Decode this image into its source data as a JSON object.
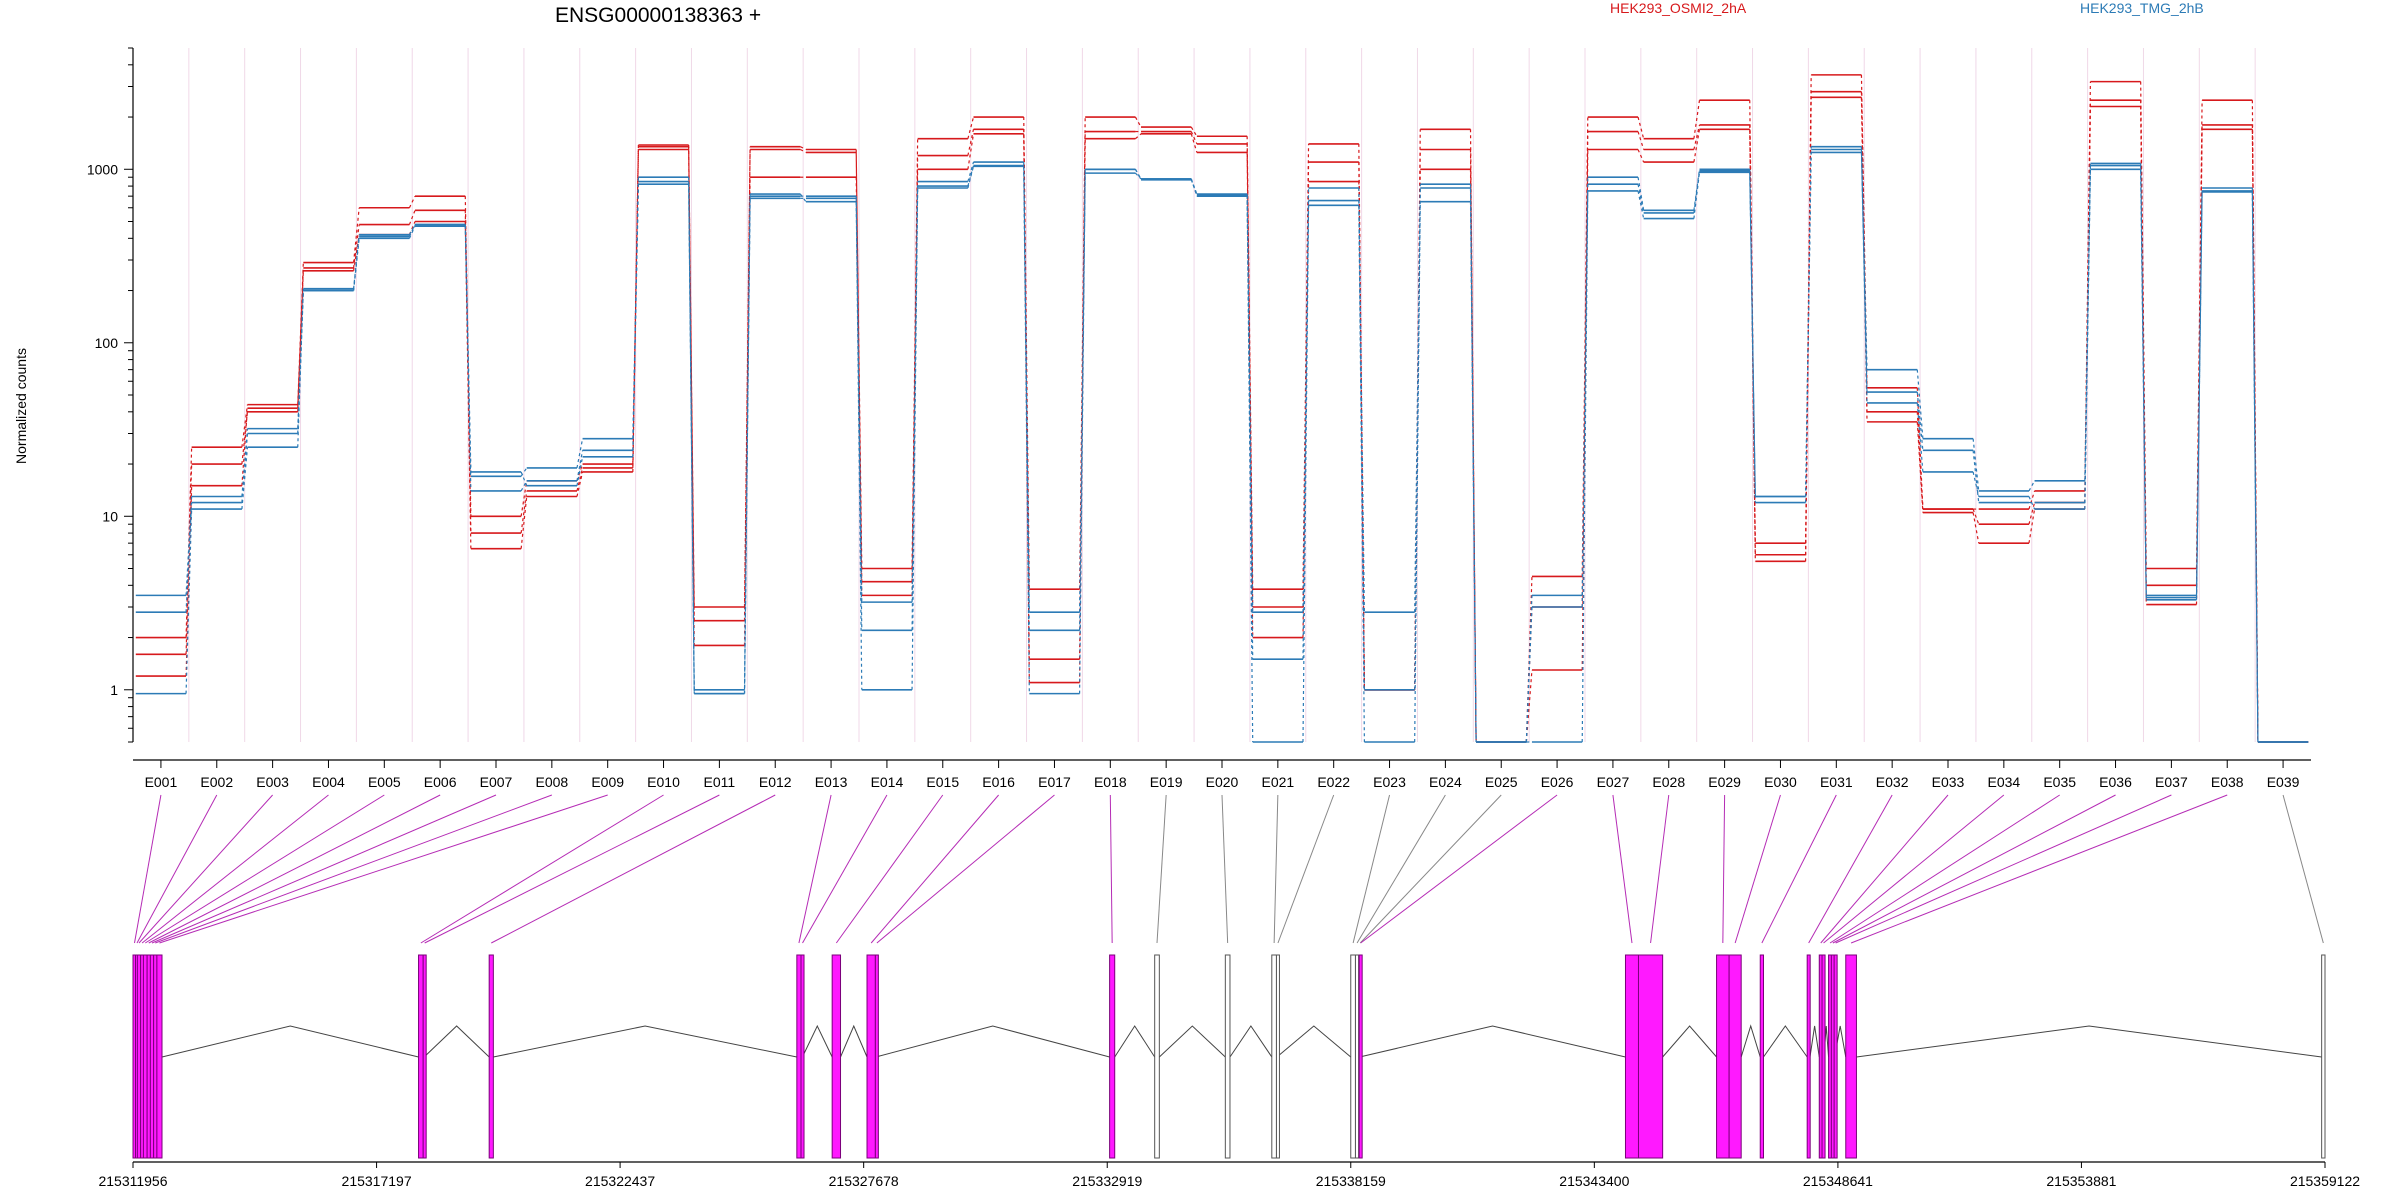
{
  "figure": {
    "title": "ENSG00000138363 +",
    "ylabel": "Normalized counts",
    "legend": [
      {
        "name": "HEK293_OSMI2_2hA",
        "color": "#d7191c"
      },
      {
        "name": "HEK293_TMG_2hB",
        "color": "#2c7bb6"
      }
    ]
  },
  "chart_data": [
    {
      "type": "line",
      "title": "ENSG00000138363 +",
      "ylabel": "Normalized counts",
      "yscale": "log",
      "ylim": [
        0.5,
        5000
      ],
      "yticks": [
        1,
        10,
        100,
        1000
      ],
      "ytick_labels": [
        "1",
        "10",
        "100",
        "1000"
      ],
      "grid": false,
      "legend": "top",
      "categories": [
        "E001",
        "E002",
        "E003",
        "E004",
        "E005",
        "E006",
        "E007",
        "E008",
        "E009",
        "E010",
        "E011",
        "E012",
        "E013",
        "E014",
        "E015",
        "E016",
        "E017",
        "E018",
        "E019",
        "E020",
        "E021",
        "E022",
        "E023",
        "E024",
        "E025",
        "E026",
        "E027",
        "E028",
        "E029",
        "E030",
        "E031",
        "E032",
        "E033",
        "E034",
        "E035",
        "E036",
        "E037",
        "E038",
        "E039"
      ],
      "highlighted_exons": [
        "E001",
        "E002",
        "E003",
        "E004",
        "E005",
        "E006",
        "E007",
        "E008",
        "E009",
        "E010",
        "E011",
        "E012",
        "E013",
        "E014",
        "E015",
        "E016",
        "E017",
        "E018",
        "E026",
        "E027",
        "E028",
        "E029",
        "E030",
        "E031",
        "E032",
        "E033",
        "E034",
        "E035",
        "E036",
        "E037",
        "E038"
      ],
      "series": [
        {
          "name": "HEK293_OSMI2_2hA",
          "color": "#d7191c",
          "values": [
            2.0,
            25,
            44,
            290,
            600,
            700,
            10,
            16,
            20,
            1350,
            3,
            1300,
            1250,
            5,
            1500,
            2000,
            3.8,
            2000,
            1750,
            1550,
            3.8,
            1400,
            1,
            1700,
            0.5,
            4.5,
            2000,
            1500,
            2500,
            7,
            3500,
            55,
            11,
            11,
            14,
            3200,
            5,
            2500,
            0.5
          ]
        },
        {
          "name": "HEK293_OSMI2_2hA",
          "color": "#d7191c",
          "values": [
            1.6,
            20,
            40,
            270,
            480,
            580,
            8,
            14,
            19,
            1300,
            2.5,
            900,
            900,
            4.2,
            1200,
            1700,
            1.5,
            1650,
            1650,
            1400,
            3,
            1100,
            1,
            1300,
            0.5,
            3,
            1650,
            1300,
            1800,
            6,
            2600,
            40,
            11,
            9,
            12,
            2500,
            4,
            1800,
            0.5
          ]
        },
        {
          "name": "HEK293_OSMI2_2hA",
          "color": "#d7191c",
          "values": [
            1.2,
            15,
            42,
            260,
            420,
            500,
            6.5,
            13,
            18,
            1380,
            1.8,
            1350,
            1300,
            3.5,
            1000,
            1600,
            1.1,
            1500,
            1600,
            1250,
            2,
            850,
            1,
            1000,
            0.5,
            1.3,
            1300,
            1100,
            1700,
            5.5,
            2800,
            35,
            10.5,
            7,
            11,
            2300,
            3.1,
            1700,
            0.5
          ]
        },
        {
          "name": "HEK293_TMG_2hB",
          "color": "#2c7bb6",
          "values": [
            3.5,
            13,
            32,
            200,
            410,
            480,
            17,
            19,
            28,
            900,
            1,
            700,
            700,
            3.2,
            850,
            1100,
            2.8,
            950,
            880,
            720,
            2.8,
            780,
            2.8,
            820,
            0.5,
            3.5,
            900,
            580,
            1000,
            13,
            1350,
            70,
            28,
            14,
            16,
            1050,
            3.5,
            780,
            0.5
          ]
        },
        {
          "name": "HEK293_TMG_2hB",
          "color": "#2c7bb6",
          "values": [
            2.8,
            12,
            30,
            200,
            400,
            470,
            14,
            16,
            24,
            850,
            0.95,
            680,
            680,
            2.2,
            800,
            1050,
            2.2,
            1000,
            880,
            700,
            1.5,
            660,
            1,
            780,
            0.5,
            3,
            820,
            560,
            980,
            12,
            1300,
            52,
            24,
            12,
            12,
            1000,
            3.4,
            750,
            0.5
          ]
        },
        {
          "name": "HEK293_TMG_2hB",
          "color": "#2c7bb6",
          "values": [
            0.95,
            11,
            25,
            205,
            420,
            480,
            18,
            15,
            22,
            820,
            0.95,
            720,
            650,
            1,
            780,
            1040,
            0.95,
            1000,
            870,
            710,
            0.5,
            620,
            0.5,
            650,
            0.5,
            0.5,
            750,
            520,
            960,
            13,
            1250,
            45,
            18,
            13,
            11,
            1080,
            3.3,
            740,
            0.5
          ]
        }
      ]
    },
    {
      "type": "gene_model",
      "xlim": [
        215311956,
        215359122
      ],
      "xticks": [
        215311956,
        215317197,
        215322437,
        215327678,
        215332919,
        215338159,
        215343400,
        215348641,
        215353881,
        215359122
      ],
      "xtick_labels": [
        "215311956",
        "215317197",
        "215322437",
        "215327678",
        "215332919",
        "215338159",
        "215343400",
        "215348641",
        "215353881",
        "215359122"
      ],
      "exons": [
        {
          "id": "E001",
          "start": 215311956,
          "end": 215312010
        },
        {
          "id": "E002",
          "start": 215312010,
          "end": 215312050
        },
        {
          "id": "E003",
          "start": 215312050,
          "end": 215312120
        },
        {
          "id": "E004",
          "start": 215312120,
          "end": 215312180
        },
        {
          "id": "E005",
          "start": 215312180,
          "end": 215312260
        },
        {
          "id": "E006",
          "start": 215312260,
          "end": 215312330
        },
        {
          "id": "E007",
          "start": 215312330,
          "end": 215312400
        },
        {
          "id": "E008",
          "start": 215312400,
          "end": 215312470
        },
        {
          "id": "E009",
          "start": 215312470,
          "end": 215312580
        },
        {
          "id": "E010",
          "start": 215318100,
          "end": 215318200
        },
        {
          "id": "E011",
          "start": 215318200,
          "end": 215318220
        },
        {
          "id": "E012",
          "start": 215319620,
          "end": 215319710
        },
        {
          "id": "E013",
          "start": 215326240,
          "end": 215326330
        },
        {
          "id": "E014",
          "start": 215326330,
          "end": 215326360
        },
        {
          "id": "E015",
          "start": 215327000,
          "end": 215327180
        },
        {
          "id": "E016",
          "start": 215327750,
          "end": 215327930
        },
        {
          "id": "E017",
          "start": 215327930,
          "end": 215327940
        },
        {
          "id": "E018",
          "start": 215332970,
          "end": 215333080
        },
        {
          "id": "E019",
          "start": 215333940,
          "end": 215334040
        },
        {
          "id": "E020",
          "start": 215335460,
          "end": 215335560
        },
        {
          "id": "E021",
          "start": 215336460,
          "end": 215336560
        },
        {
          "id": "E022",
          "start": 215336560,
          "end": 215336570
        },
        {
          "id": "E023",
          "start": 215338159,
          "end": 215338260
        },
        {
          "id": "E024",
          "start": 215338260,
          "end": 215338330
        },
        {
          "id": "E025",
          "start": 215338330,
          "end": 215338340
        },
        {
          "id": "E026",
          "start": 215338340,
          "end": 215338350
        },
        {
          "id": "E027",
          "start": 215344070,
          "end": 215344350
        },
        {
          "id": "E028",
          "start": 215344350,
          "end": 215344870
        },
        {
          "id": "E029",
          "start": 215346030,
          "end": 215346300
        },
        {
          "id": "E030",
          "start": 215346300,
          "end": 215346560
        },
        {
          "id": "E031",
          "start": 215346970,
          "end": 215347040
        },
        {
          "id": "E032",
          "start": 215347980,
          "end": 215348040
        },
        {
          "id": "E033",
          "start": 215348240,
          "end": 215348300
        },
        {
          "id": "E034",
          "start": 215348300,
          "end": 215348340
        },
        {
          "id": "E035",
          "start": 215348440,
          "end": 215348500
        },
        {
          "id": "E036",
          "start": 215348500,
          "end": 215348560
        },
        {
          "id": "E037",
          "start": 215348560,
          "end": 215348570
        },
        {
          "id": "E038",
          "start": 215348810,
          "end": 215349040
        },
        {
          "id": "E039",
          "start": 215359050,
          "end": 215359122
        }
      ]
    }
  ]
}
